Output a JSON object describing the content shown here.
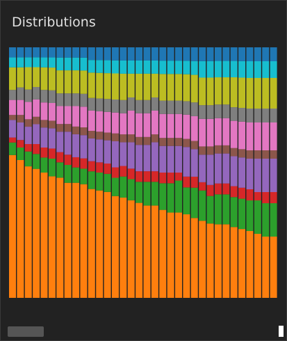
{
  "panel": {
    "title": "Distributions"
  },
  "chart_data": {
    "type": "bar",
    "stacked": true,
    "normalized": true,
    "columns": 34,
    "colors": [
      "#ff7f0e",
      "#2ca02c",
      "#d62728",
      "#9467bd",
      "#8c564b",
      "#e377c2",
      "#7f7f7f",
      "#bcbd22",
      "#17becf",
      "#1f77b4"
    ],
    "series": [
      {
        "values": [
          0.57,
          0.55,
          0.53,
          0.52,
          0.5,
          0.48,
          0.47,
          0.45,
          0.45,
          0.44,
          0.43,
          0.42,
          0.41,
          0.39,
          0.38,
          0.37,
          0.36,
          0.35,
          0.35,
          0.33,
          0.32,
          0.32,
          0.31,
          0.29,
          0.28,
          0.27,
          0.27,
          0.27,
          0.26,
          0.25,
          0.24,
          0.23,
          0.22,
          0.22
        ]
      },
      {
        "values": [
          0.05,
          0.05,
          0.06,
          0.06,
          0.06,
          0.07,
          0.06,
          0.07,
          0.06,
          0.06,
          0.07,
          0.07,
          0.07,
          0.07,
          0.08,
          0.08,
          0.08,
          0.09,
          0.09,
          0.1,
          0.11,
          0.12,
          0.1,
          0.11,
          0.11,
          0.1,
          0.11,
          0.11,
          0.11,
          0.11,
          0.11,
          0.12,
          0.12,
          0.12
        ]
      },
      {
        "values": [
          0.02,
          0.03,
          0.03,
          0.04,
          0.04,
          0.04,
          0.04,
          0.04,
          0.04,
          0.04,
          0.04,
          0.04,
          0.04,
          0.04,
          0.04,
          0.04,
          0.04,
          0.04,
          0.04,
          0.04,
          0.04,
          0.03,
          0.04,
          0.04,
          0.03,
          0.04,
          0.04,
          0.04,
          0.04,
          0.04,
          0.04,
          0.03,
          0.04,
          0.04
        ]
      },
      {
        "values": [
          0.07,
          0.07,
          0.07,
          0.08,
          0.08,
          0.08,
          0.08,
          0.09,
          0.09,
          0.09,
          0.09,
          0.09,
          0.09,
          0.1,
          0.09,
          0.1,
          0.1,
          0.1,
          0.11,
          0.1,
          0.1,
          0.1,
          0.11,
          0.1,
          0.1,
          0.11,
          0.11,
          0.11,
          0.11,
          0.11,
          0.11,
          0.12,
          0.12,
          0.12
        ]
      },
      {
        "values": [
          0.02,
          0.03,
          0.03,
          0.03,
          0.03,
          0.03,
          0.03,
          0.03,
          0.03,
          0.03,
          0.03,
          0.03,
          0.03,
          0.03,
          0.03,
          0.03,
          0.03,
          0.03,
          0.03,
          0.03,
          0.03,
          0.03,
          0.03,
          0.03,
          0.03,
          0.03,
          0.03,
          0.03,
          0.03,
          0.03,
          0.03,
          0.03,
          0.03,
          0.03
        ]
      },
      {
        "values": [
          0.06,
          0.06,
          0.07,
          0.07,
          0.07,
          0.07,
          0.07,
          0.07,
          0.08,
          0.08,
          0.08,
          0.08,
          0.08,
          0.08,
          0.08,
          0.09,
          0.09,
          0.09,
          0.09,
          0.09,
          0.09,
          0.09,
          0.09,
          0.09,
          0.1,
          0.1,
          0.1,
          0.1,
          0.1,
          0.1,
          0.1,
          0.1,
          0.1,
          0.1
        ]
      },
      {
        "values": [
          0.04,
          0.05,
          0.05,
          0.05,
          0.05,
          0.05,
          0.05,
          0.05,
          0.05,
          0.05,
          0.05,
          0.05,
          0.05,
          0.05,
          0.05,
          0.05,
          0.05,
          0.05,
          0.05,
          0.05,
          0.05,
          0.05,
          0.05,
          0.05,
          0.05,
          0.05,
          0.05,
          0.05,
          0.05,
          0.05,
          0.05,
          0.05,
          0.05,
          0.05
        ]
      },
      {
        "values": [
          0.09,
          0.08,
          0.09,
          0.08,
          0.09,
          0.09,
          0.09,
          0.09,
          0.09,
          0.09,
          0.1,
          0.1,
          0.1,
          0.1,
          0.1,
          0.09,
          0.1,
          0.1,
          0.09,
          0.1,
          0.1,
          0.1,
          0.1,
          0.1,
          0.1,
          0.1,
          0.1,
          0.1,
          0.11,
          0.11,
          0.11,
          0.11,
          0.11,
          0.11
        ]
      },
      {
        "values": [
          0.04,
          0.04,
          0.04,
          0.04,
          0.04,
          0.04,
          0.05,
          0.05,
          0.05,
          0.05,
          0.05,
          0.05,
          0.05,
          0.05,
          0.05,
          0.05,
          0.05,
          0.05,
          0.05,
          0.05,
          0.05,
          0.05,
          0.05,
          0.05,
          0.06,
          0.06,
          0.06,
          0.06,
          0.06,
          0.06,
          0.06,
          0.06,
          0.06,
          0.06
        ]
      },
      {
        "values": [
          0.04,
          0.04,
          0.04,
          0.04,
          0.04,
          0.04,
          0.04,
          0.04,
          0.04,
          0.04,
          0.05,
          0.05,
          0.05,
          0.05,
          0.05,
          0.05,
          0.05,
          0.05,
          0.05,
          0.05,
          0.05,
          0.05,
          0.05,
          0.05,
          0.05,
          0.05,
          0.05,
          0.05,
          0.05,
          0.05,
          0.05,
          0.05,
          0.05,
          0.05
        ]
      }
    ]
  }
}
